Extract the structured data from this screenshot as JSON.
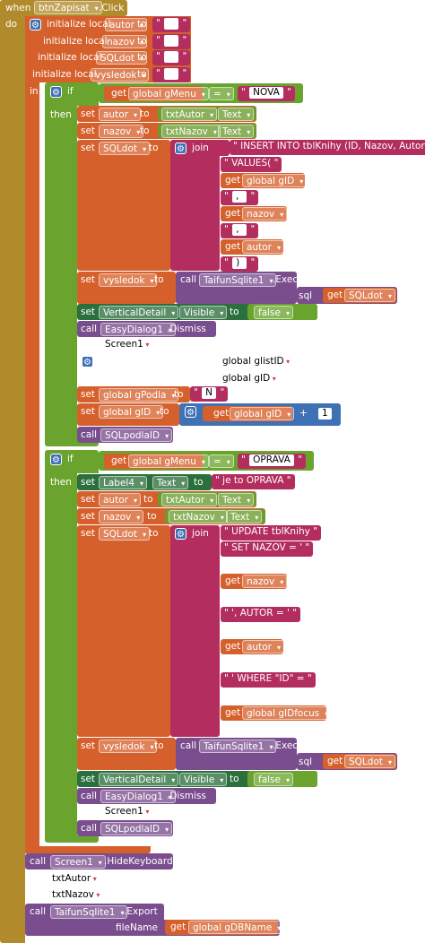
{
  "event": {
    "when": "when",
    "component": "btnZapisat",
    "event_name": ".Click",
    "do": "do"
  },
  "locals": {
    "init_label": "initialize local",
    "to": "to",
    "in": "in",
    "names": [
      "autor",
      "nazov",
      "SQLdot",
      "vysledok"
    ]
  },
  "kw": {
    "if": "if",
    "then": "then",
    "set": "set",
    "get": "get",
    "call": "call",
    "to": "to",
    "join": "join",
    "eq": "=",
    "plus": "+",
    "sql": "sql"
  },
  "if1": {
    "cond_var": "global gMenu",
    "cond_value": "NOVA",
    "set_autor": {
      "var": "autor",
      "comp": "txtAutor",
      "prop": "Text"
    },
    "set_nazov": {
      "var": "nazov",
      "comp": "txtNazov",
      "prop": "Text"
    },
    "set_sql_var": "SQLdot",
    "join_items": {
      "s1": "INSERT INTO tblKnihy (ID, Nazov, Autor)",
      "s2": "VALUES(",
      "g1": "global gID",
      "s3": ",",
      "g2": "nazov",
      "s4": ",",
      "g3": "autor",
      "s5": ")"
    },
    "set_vysledok": {
      "var": "vysledok",
      "comp": "TaifunSqlite1",
      "method": ".Execute",
      "arg": "sql",
      "arg_var": "SQLdot"
    },
    "set_visible": {
      "comp": "VerticalDetail",
      "prop": "Visible",
      "value": "false"
    },
    "dismiss": {
      "comp": "EasyDialog1",
      "method": ".Dismiss"
    },
    "screen": "Screen1",
    "glist": "global glistID",
    "gid": "global gID",
    "set_podla": {
      "var": "global gPodla",
      "value": "N"
    },
    "set_gid": {
      "var": "global gID",
      "get": "global gID",
      "num": "1"
    },
    "call_proc": "SQLpodlaID"
  },
  "if2": {
    "cond_var": "global gMenu",
    "cond_value": "OPRAVA",
    "set_label": {
      "comp": "Label4",
      "prop": "Text",
      "value": "je to OPRAVA"
    },
    "set_autor": {
      "var": "autor",
      "comp": "txtAutor",
      "prop": "Text"
    },
    "set_nazov": {
      "var": "nazov",
      "comp": "txtNazov",
      "prop": "Text"
    },
    "set_sql_var": "SQLdot",
    "join_items": {
      "s1": "UPDATE tblKnihy",
      "s2": "SET NAZOV = '",
      "g1": "nazov",
      "s3": "', AUTOR = '",
      "g2": "autor",
      "s4": "' WHERE \"ID\" = ",
      "g3": "global gIDfocus"
    },
    "set_vysledok": {
      "var": "vysledok",
      "comp": "TaifunSqlite1",
      "method": ".Execute",
      "arg": "sql",
      "arg_var": "SQLdot"
    },
    "set_visible": {
      "comp": "VerticalDetail",
      "prop": "Visible",
      "value": "false"
    },
    "dismiss": {
      "comp": "EasyDialog1",
      "method": ".Dismiss"
    },
    "screen": "Screen1",
    "call_proc": "SQLpodlaID"
  },
  "tail": {
    "hide": {
      "comp": "Screen1",
      "method": ".HideKeyboard",
      "a1": "txtAutor",
      "a2": "txtNazov"
    },
    "export": {
      "comp": "TaifunSqlite1",
      "method": ".Export",
      "arg": "fileName",
      "get": "global gDBName"
    }
  },
  "colors": {
    "event": "#b08a2b",
    "local": "#d5602c",
    "logic": "#6aa42e",
    "text": "#b32d5e",
    "component_get": "#6c9b2f",
    "component_set": "#2b6f3d",
    "method": "#7a4e8e",
    "math": "#3f71b5",
    "var": "#d5602c"
  }
}
